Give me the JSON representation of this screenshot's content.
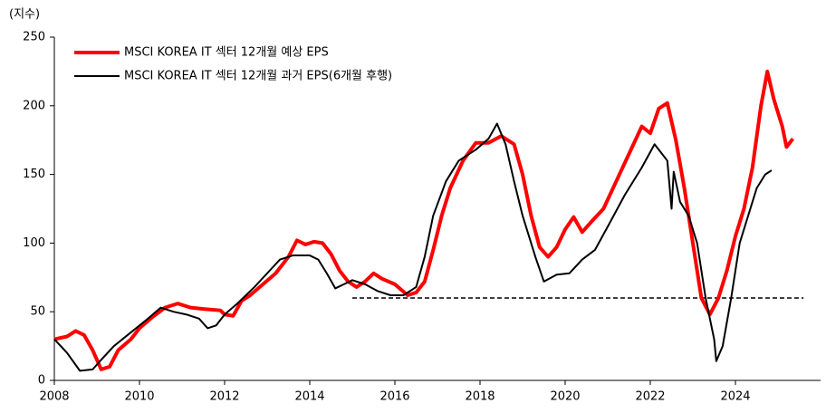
{
  "chart_data": {
    "type": "line",
    "y_label": "(지수)",
    "xlim": [
      2008,
      2026
    ],
    "xticks": [
      2008,
      2010,
      2012,
      2014,
      2016,
      2018,
      2020,
      2022,
      2024
    ],
    "ylim": [
      0,
      250
    ],
    "yticks": [
      0,
      50,
      100,
      150,
      200,
      250
    ],
    "legend": "top-left",
    "reference_line": {
      "y": 60,
      "x": [
        2015,
        2025.6
      ]
    },
    "series": [
      {
        "name": "MSCI KOREA IT 섹터 12개월 예상 EPS",
        "color": "#ff0000",
        "x": [
          2008.0,
          2008.3,
          2008.5,
          2008.7,
          2008.9,
          2009.1,
          2009.3,
          2009.5,
          2009.8,
          2010.0,
          2010.3,
          2010.6,
          2010.9,
          2011.2,
          2011.5,
          2011.9,
          2012.0,
          2012.2,
          2012.4,
          2012.6,
          2012.9,
          2013.2,
          2013.5,
          2013.7,
          2013.9,
          2014.1,
          2014.3,
          2014.5,
          2014.7,
          2014.9,
          2015.1,
          2015.3,
          2015.5,
          2015.7,
          2016.0,
          2016.3,
          2016.5,
          2016.7,
          2016.9,
          2017.1,
          2017.3,
          2017.6,
          2017.9,
          2018.2,
          2018.5,
          2018.8,
          2019.0,
          2019.2,
          2019.4,
          2019.6,
          2019.8,
          2020.0,
          2020.2,
          2020.4,
          2020.6,
          2020.9,
          2021.2,
          2021.5,
          2021.8,
          2022.0,
          2022.2,
          2022.4,
          2022.6,
          2022.8,
          2023.0,
          2023.2,
          2023.4,
          2023.6,
          2023.8,
          2024.0,
          2024.2,
          2024.4,
          2024.6,
          2024.75,
          2024.9,
          2025.1,
          2025.2,
          2025.35
        ],
        "values": [
          30,
          32,
          36,
          33,
          22,
          8,
          10,
          22,
          30,
          38,
          46,
          53,
          56,
          53,
          52,
          51,
          48,
          47,
          58,
          62,
          70,
          78,
          90,
          102,
          99,
          101,
          100,
          92,
          80,
          72,
          68,
          72,
          78,
          74,
          70,
          62,
          64,
          72,
          95,
          120,
          140,
          160,
          173,
          173,
          178,
          172,
          150,
          120,
          97,
          90,
          97,
          110,
          119,
          108,
          115,
          125,
          145,
          165,
          185,
          180,
          198,
          202,
          175,
          140,
          100,
          60,
          48,
          60,
          80,
          105,
          125,
          155,
          200,
          225,
          205,
          185,
          170,
          176
        ]
      },
      {
        "name": "MSCI KOREA IT 섹터 12개월 과거 EPS(6개월 후행)",
        "color": "#000000",
        "x": [
          2008.0,
          2008.3,
          2008.6,
          2008.9,
          2009.1,
          2009.4,
          2009.8,
          2010.2,
          2010.5,
          2010.8,
          2011.1,
          2011.4,
          2011.6,
          2011.8,
          2012.0,
          2012.3,
          2012.7,
          2013.0,
          2013.3,
          2013.6,
          2014.0,
          2014.2,
          2014.4,
          2014.6,
          2014.8,
          2015.0,
          2015.3,
          2015.6,
          2015.9,
          2016.2,
          2016.5,
          2016.7,
          2016.9,
          2017.2,
          2017.5,
          2017.9,
          2018.2,
          2018.4,
          2018.6,
          2018.8,
          2019.0,
          2019.3,
          2019.5,
          2019.8,
          2020.1,
          2020.4,
          2020.7,
          2021.0,
          2021.4,
          2021.8,
          2022.1,
          2022.4,
          2022.5,
          2022.55,
          2022.7,
          2022.9,
          2023.1,
          2023.3,
          2023.5,
          2023.55,
          2023.7,
          2023.9,
          2024.1,
          2024.3,
          2024.5,
          2024.7,
          2024.85
        ],
        "values": [
          30,
          20,
          7,
          8,
          15,
          25,
          35,
          45,
          53,
          50,
          48,
          45,
          38,
          40,
          48,
          56,
          68,
          78,
          88,
          91,
          91,
          88,
          78,
          67,
          70,
          73,
          70,
          65,
          62,
          62,
          68,
          90,
          120,
          145,
          160,
          168,
          176,
          187,
          172,
          145,
          120,
          90,
          72,
          77,
          78,
          88,
          95,
          112,
          135,
          155,
          172,
          160,
          125,
          152,
          130,
          120,
          100,
          60,
          30,
          14,
          25,
          60,
          100,
          120,
          140,
          150,
          153
        ]
      }
    ]
  }
}
